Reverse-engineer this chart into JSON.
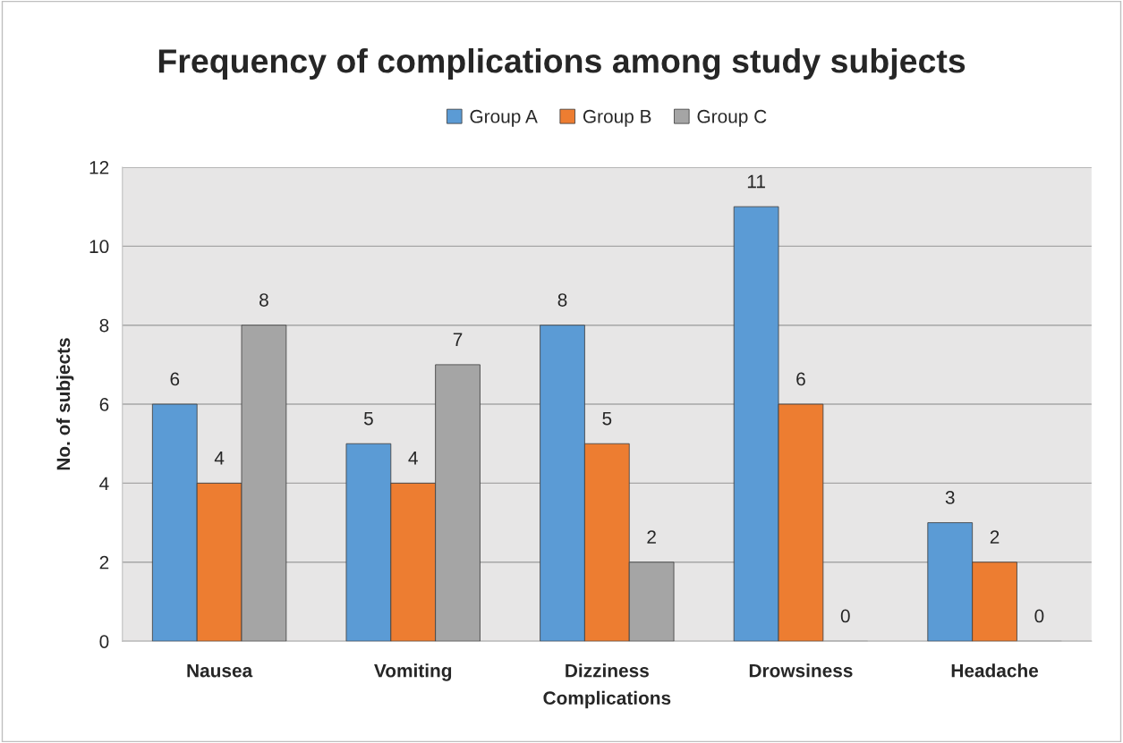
{
  "chart_data": {
    "type": "bar",
    "title": "Frequency of complications among study subjects",
    "xlabel": "Complications",
    "ylabel": "No. of subjects",
    "categories": [
      "Nausea",
      "Vomiting",
      "Dizziness",
      "Drowsiness",
      "Headache"
    ],
    "series": [
      {
        "name": "Group A",
        "color": "#5b9bd5",
        "values": [
          6,
          5,
          8,
          11,
          3
        ]
      },
      {
        "name": "Group B",
        "color": "#ed7d31",
        "values": [
          4,
          4,
          5,
          6,
          2
        ]
      },
      {
        "name": "Group C",
        "color": "#a5a5a5",
        "values": [
          8,
          7,
          2,
          0,
          0
        ]
      }
    ],
    "ylim": [
      0,
      12
    ],
    "yticks": [
      0,
      2,
      4,
      6,
      8,
      10,
      12
    ],
    "grid": "y",
    "legend": "top",
    "data_labels": true
  }
}
